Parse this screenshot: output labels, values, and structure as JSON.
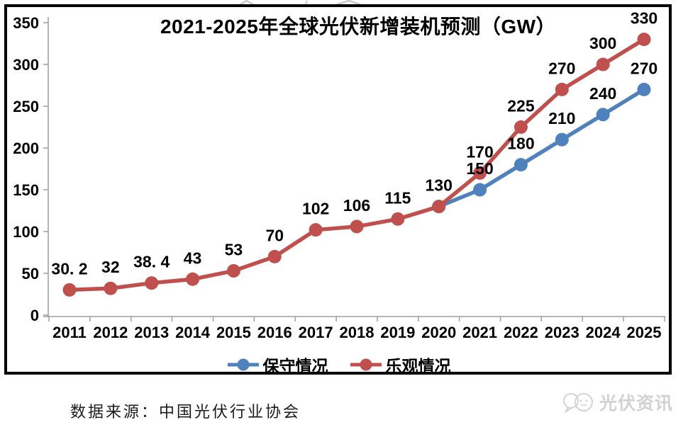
{
  "page": {
    "title": "2021-2025年全球光伏新增装机预测（GW）",
    "source": "数据来源：中国光伏行业协会",
    "brand": "光伏资讯"
  },
  "colors": {
    "conservative": "#4f81bd",
    "optimistic": "#c0504d",
    "axis": "#9e9e9e",
    "frame": "#000000",
    "watermark": "#cccccc"
  },
  "chart_data": {
    "type": "line",
    "title": "2021-2025年全球光伏新增装机预测（GW）",
    "xlabel": "",
    "ylabel": "",
    "x": [
      2011,
      2012,
      2013,
      2014,
      2015,
      2016,
      2017,
      2018,
      2019,
      2020,
      2021,
      2022,
      2023,
      2024,
      2025
    ],
    "ylim": [
      0,
      350
    ],
    "yticks": [
      0,
      50,
      100,
      150,
      200,
      250,
      300,
      350
    ],
    "grid": false,
    "legend_position": "bottom",
    "series": [
      {
        "name": "保守情况",
        "color": "#4f81bd",
        "x": [
          2020,
          2021,
          2022,
          2023,
          2024,
          2025
        ],
        "values": [
          130,
          150,
          180,
          210,
          240,
          270
        ],
        "labels": [
          "",
          "150",
          "180",
          "210",
          "240",
          "270"
        ]
      },
      {
        "name": "乐观情况",
        "color": "#c0504d",
        "x": [
          2011,
          2012,
          2013,
          2014,
          2015,
          2016,
          2017,
          2018,
          2019,
          2020,
          2021,
          2022,
          2023,
          2024,
          2025
        ],
        "values": [
          30.2,
          32,
          38.4,
          43,
          53,
          70,
          102,
          106,
          115,
          130,
          170,
          225,
          270,
          300,
          330
        ],
        "labels": [
          "30. 2",
          "32",
          "38. 4",
          "43",
          "53",
          "70",
          "102",
          "106",
          "115",
          "130",
          "170",
          "225",
          "270",
          "300",
          "330"
        ]
      }
    ]
  },
  "legend": {
    "items": [
      {
        "label": "保守情况",
        "color": "#4f81bd"
      },
      {
        "label": "乐观情况",
        "color": "#c0504d"
      }
    ]
  }
}
